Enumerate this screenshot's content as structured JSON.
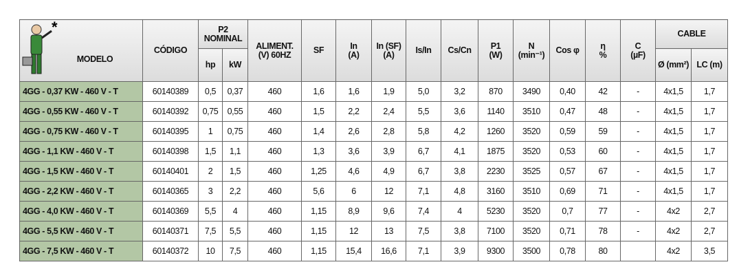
{
  "header": {
    "note": "*",
    "modelo": "MODELO",
    "codigo": "CÓDIGO",
    "p2": "P2 NOMINAL",
    "hp": "hp",
    "kw": "kW",
    "aliment": "ALIMENT.\n(V) 60HZ",
    "sf": "SF",
    "in": "In\n(A)",
    "insf": "In (SF)\n(A)",
    "isin": "Is/In",
    "cscn": "Cs/Cn",
    "p1": "P1\n(W)",
    "n": "N\n(min⁻¹)",
    "cos": "Cos φ",
    "eta": "η\n%",
    "c": "C\n(µF)",
    "cable": "CABLE",
    "diam": "Ø (mm²)",
    "lc": "LC (m)"
  },
  "table": {
    "rows": [
      [
        "4GG - 0,37 KW - 460 V - T",
        "60140389",
        "0,5",
        "0,37",
        "460",
        "1,6",
        "1,6",
        "1,9",
        "5,0",
        "3,2",
        "870",
        "3490",
        "0,40",
        "42",
        "-",
        "4x1,5",
        "1,7"
      ],
      [
        "4GG - 0,55 KW - 460 V - T",
        "60140392",
        "0,75",
        "0,55",
        "460",
        "1,5",
        "2,2",
        "2,4",
        "5,5",
        "3,6",
        "1140",
        "3510",
        "0,47",
        "48",
        "-",
        "4x1,5",
        "1,7"
      ],
      [
        "4GG - 0,75 KW - 460 V - T",
        "60140395",
        "1",
        "0,75",
        "460",
        "1,4",
        "2,6",
        "2,8",
        "5,8",
        "4,2",
        "1260",
        "3520",
        "0,59",
        "59",
        "-",
        "4x1,5",
        "1,7"
      ],
      [
        "4GG - 1,1 KW - 460 V - T",
        "60140398",
        "1,5",
        "1,1",
        "460",
        "1,3",
        "3,6",
        "3,9",
        "6,7",
        "4,1",
        "1875",
        "3520",
        "0,53",
        "60",
        "-",
        "4x1,5",
        "1,7"
      ],
      [
        "4GG - 1,5 KW - 460 V - T",
        "60140401",
        "2",
        "1,5",
        "460",
        "1,25",
        "4,6",
        "4,9",
        "6,7",
        "3,8",
        "2230",
        "3525",
        "0,57",
        "67",
        "-",
        "4x1,5",
        "1,7"
      ],
      [
        "4GG - 2,2 KW - 460 V - T",
        "60140365",
        "3",
        "2,2",
        "460",
        "5,6",
        "6",
        "12",
        "7,1",
        "4,8",
        "3160",
        "3510",
        "0,69",
        "71",
        "-",
        "4x1,5",
        "1,7"
      ],
      [
        "4GG - 4,0 KW - 460 V - T",
        "60140369",
        "5,5",
        "4",
        "460",
        "1,15",
        "8,9",
        "9,6",
        "7,4",
        "4",
        "5230",
        "3520",
        "0,7",
        "77",
        "-",
        "4x2",
        "2,7"
      ],
      [
        "4GG - 5,5 KW - 460 V - T",
        "60140371",
        "7,5",
        "5,5",
        "460",
        "1,15",
        "12",
        "13",
        "7,5",
        "3,8",
        "7100",
        "3520",
        "0,71",
        "78",
        "-",
        "4x2",
        "2,7"
      ],
      [
        "4GG - 7,5 KW - 460 V - T",
        "60140372",
        "10",
        "7,5",
        "460",
        "1,15",
        "15,4",
        "16,6",
        "7,1",
        "3,9",
        "9300",
        "3500",
        "0,78",
        "80",
        "",
        "4x2",
        "3,5"
      ]
    ]
  }
}
